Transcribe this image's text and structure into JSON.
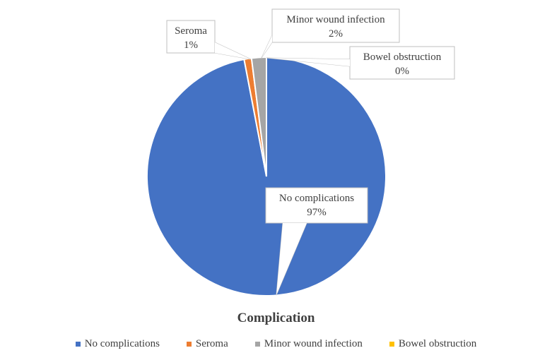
{
  "chart_data": {
    "type": "pie",
    "title": "Complication",
    "legend_position": "bottom",
    "slices": [
      {
        "name": "No complications",
        "value": 97,
        "label": "97%",
        "color": "#4472C4"
      },
      {
        "name": "Seroma",
        "value": 1,
        "label": "1%",
        "color": "#ED7D31"
      },
      {
        "name": "Minor wound infection",
        "value": 2,
        "label": "2%",
        "color": "#A5A5A5"
      },
      {
        "name": "Bowel obstruction",
        "value": 0,
        "label": "0%",
        "color": "#FFC000"
      }
    ]
  }
}
